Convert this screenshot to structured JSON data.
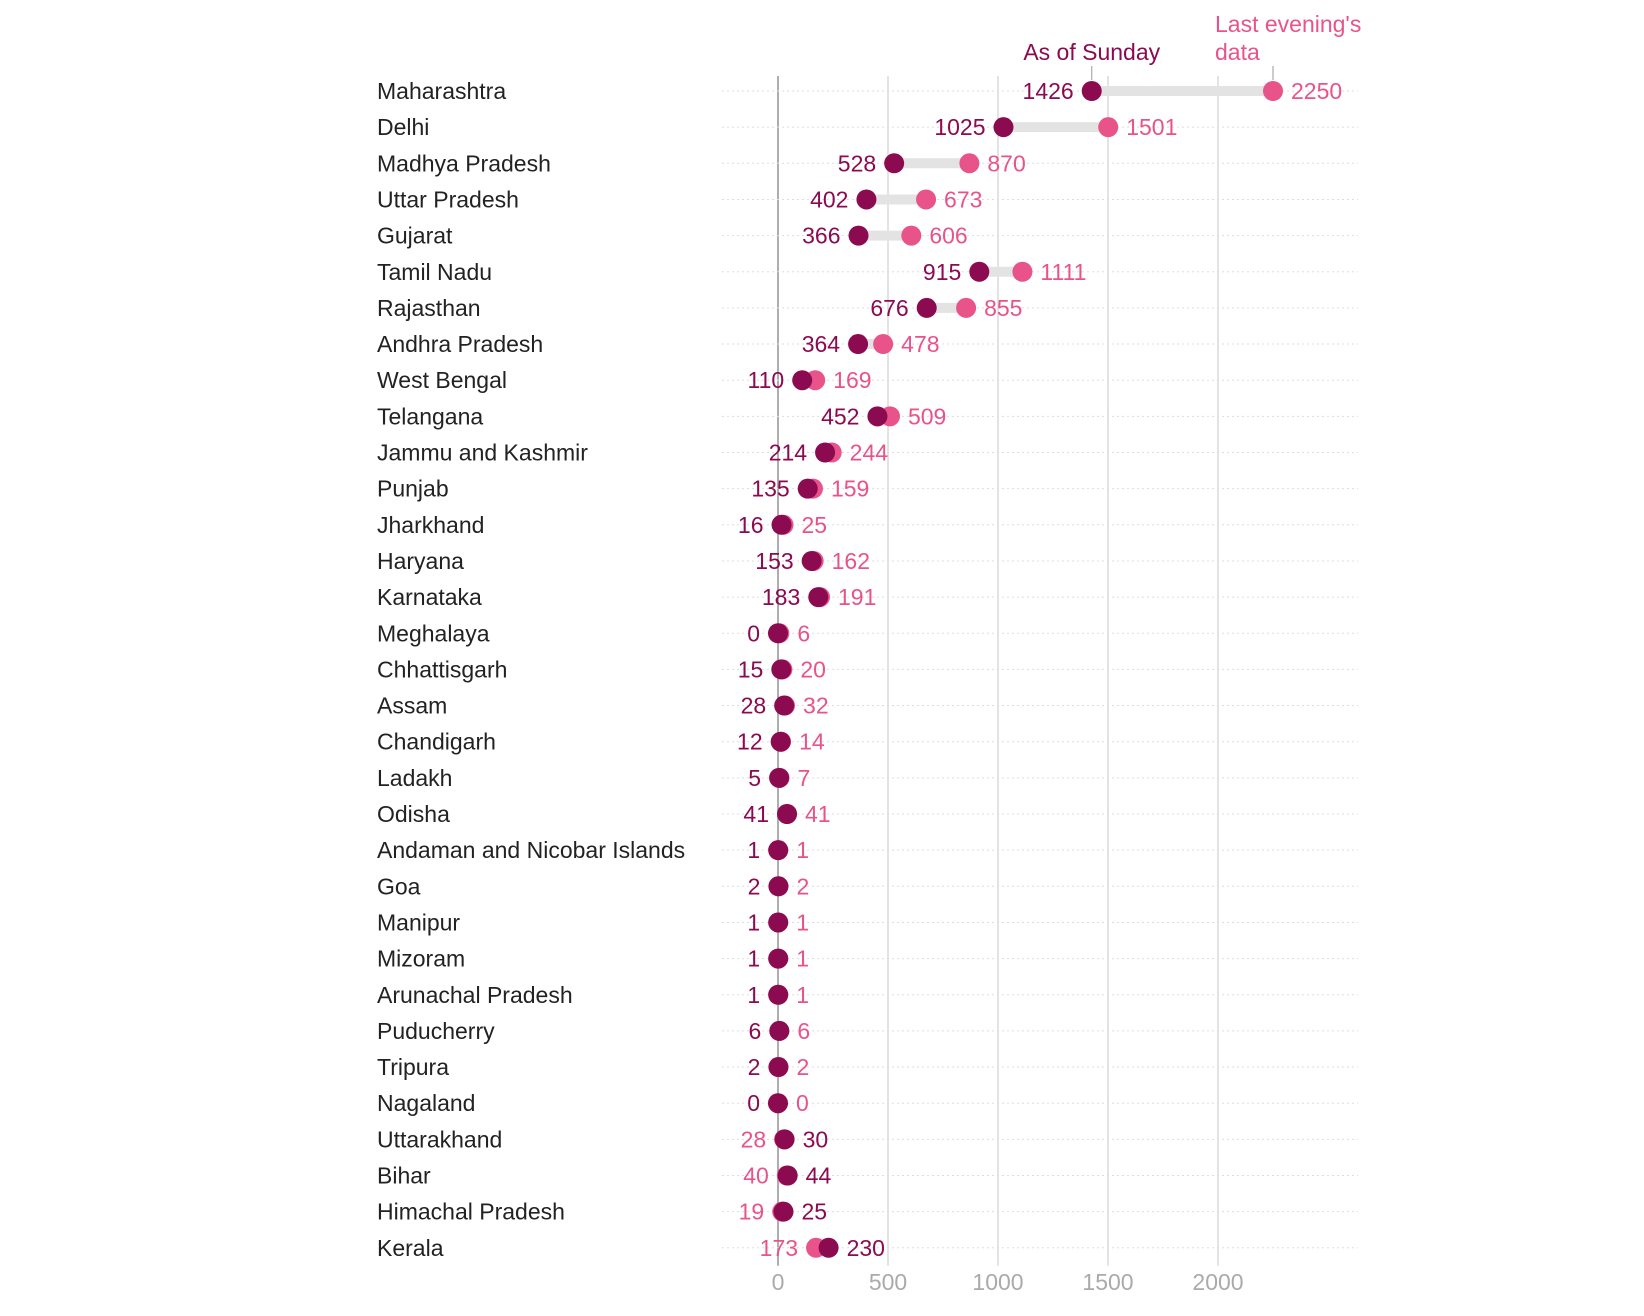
{
  "chart_data": {
    "type": "dot",
    "title": "",
    "xlabel": "",
    "ylabel": "",
    "xlim": [
      0,
      2500
    ],
    "xticks": [
      0,
      500,
      1000,
      1500,
      2000
    ],
    "grid": "vertical",
    "legend": {
      "as_of_sunday": "As of Sunday",
      "last_evening_line1": "Last evening's",
      "last_evening_line2": "data"
    },
    "colors": {
      "as_of_sunday": "#8b0a50",
      "last_evening": "#e8538a",
      "connector": "#e3e3e3",
      "gridline": "#d0d0d0"
    },
    "series": [
      {
        "name": "As of Sunday",
        "key": "sunday"
      },
      {
        "name": "Last evening's data",
        "key": "last"
      }
    ],
    "rows": [
      {
        "state": "Maharashtra",
        "sunday": 1426,
        "last": 2250
      },
      {
        "state": "Delhi",
        "sunday": 1025,
        "last": 1501
      },
      {
        "state": "Madhya Pradesh",
        "sunday": 528,
        "last": 870
      },
      {
        "state": "Uttar Pradesh",
        "sunday": 402,
        "last": 673
      },
      {
        "state": "Gujarat",
        "sunday": 366,
        "last": 606
      },
      {
        "state": "Tamil Nadu",
        "sunday": 915,
        "last": 1111
      },
      {
        "state": "Rajasthan",
        "sunday": 676,
        "last": 855
      },
      {
        "state": "Andhra Pradesh",
        "sunday": 364,
        "last": 478
      },
      {
        "state": "West Bengal",
        "sunday": 110,
        "last": 169
      },
      {
        "state": "Telangana",
        "sunday": 452,
        "last": 509
      },
      {
        "state": "Jammu and Kashmir",
        "sunday": 214,
        "last": 244
      },
      {
        "state": "Punjab",
        "sunday": 135,
        "last": 159
      },
      {
        "state": "Jharkhand",
        "sunday": 16,
        "last": 25
      },
      {
        "state": "Haryana",
        "sunday": 153,
        "last": 162
      },
      {
        "state": "Karnataka",
        "sunday": 183,
        "last": 191
      },
      {
        "state": "Meghalaya",
        "sunday": 0,
        "last": 6
      },
      {
        "state": "Chhattisgarh",
        "sunday": 15,
        "last": 20
      },
      {
        "state": "Assam",
        "sunday": 28,
        "last": 32
      },
      {
        "state": "Chandigarh",
        "sunday": 12,
        "last": 14
      },
      {
        "state": "Ladakh",
        "sunday": 5,
        "last": 7
      },
      {
        "state": "Odisha",
        "sunday": 41,
        "last": 41
      },
      {
        "state": "Andaman and Nicobar Islands",
        "sunday": 1,
        "last": 1
      },
      {
        "state": "Goa",
        "sunday": 2,
        "last": 2
      },
      {
        "state": "Manipur",
        "sunday": 1,
        "last": 1
      },
      {
        "state": "Mizoram",
        "sunday": 1,
        "last": 1
      },
      {
        "state": "Arunachal Pradesh",
        "sunday": 1,
        "last": 1
      },
      {
        "state": "Puducherry",
        "sunday": 6,
        "last": 6
      },
      {
        "state": "Tripura",
        "sunday": 2,
        "last": 2
      },
      {
        "state": "Nagaland",
        "sunday": 0,
        "last": 0
      },
      {
        "state": "Uttarakhand",
        "sunday": 30,
        "last": 28
      },
      {
        "state": "Bihar",
        "sunday": 44,
        "last": 40
      },
      {
        "state": "Himachal Pradesh",
        "sunday": 25,
        "last": 19
      },
      {
        "state": "Kerala",
        "sunday": 230,
        "last": 173
      }
    ]
  }
}
